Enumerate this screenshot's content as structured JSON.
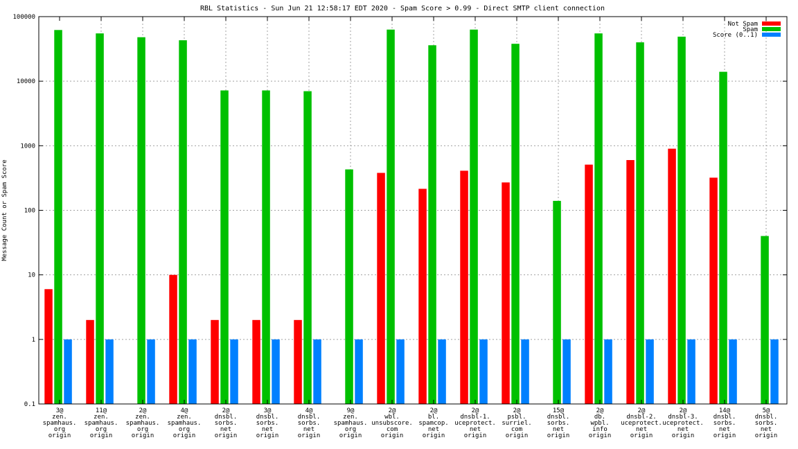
{
  "chart_data": {
    "type": "bar",
    "title": "RBL Statistics - Sun Jun 21 12:58:17 EDT 2020 - Spam Score > 0.99 - Direct SMTP client connection",
    "xlabel": "",
    "ylabel": "Message Count or Spam Score",
    "yscale": "log",
    "ylim": [
      0.1,
      100000
    ],
    "yticks": [
      "0.1",
      "1",
      "10",
      "100",
      "1000",
      "10000",
      "100000"
    ],
    "grid": true,
    "legend_position": "top-right",
    "categories": [
      [
        "3@",
        "zen.",
        "spamhaus.",
        "org",
        "origin"
      ],
      [
        "11@",
        "zen.",
        "spamhaus.",
        "org",
        "origin"
      ],
      [
        "2@",
        "zen.",
        "spamhaus.",
        "org",
        "origin"
      ],
      [
        "4@",
        "zen.",
        "spamhaus.",
        "org",
        "origin"
      ],
      [
        "2@",
        "dnsbl.",
        "sorbs.",
        "net",
        "origin"
      ],
      [
        "3@",
        "dnsbl.",
        "sorbs.",
        "net",
        "origin"
      ],
      [
        "4@",
        "dnsbl.",
        "sorbs.",
        "net",
        "origin"
      ],
      [
        "9@",
        "zen.",
        "spamhaus.",
        "org",
        "origin"
      ],
      [
        "2@",
        "wbl.",
        "unsubscore.",
        "com",
        "origin"
      ],
      [
        "2@",
        "bl.",
        "spamcop.",
        "net",
        "origin"
      ],
      [
        "2@",
        "dnsbl-1.",
        "uceprotect.",
        "net",
        "origin"
      ],
      [
        "2@",
        "psbl.",
        "surriel.",
        "com",
        "origin"
      ],
      [
        "15@",
        "dnsbl.",
        "sorbs.",
        "net",
        "origin"
      ],
      [
        "2@",
        "db.",
        "wpbl.",
        "info",
        "origin"
      ],
      [
        "2@",
        "dnsbl-2.",
        "uceprotect.",
        "net",
        "origin"
      ],
      [
        "2@",
        "dnsbl-3.",
        "uceprotect.",
        "net",
        "origin"
      ],
      [
        "14@",
        "dnsbl.",
        "sorbs.",
        "net",
        "origin"
      ],
      [
        "5@",
        "dnsbl.",
        "sorbs.",
        "net",
        "origin"
      ]
    ],
    "series": [
      {
        "name": "Not Spam",
        "color": "#ff0000",
        "values": [
          6,
          2,
          null,
          10,
          2,
          2,
          2,
          null,
          380,
          215,
          410,
          270,
          null,
          510,
          600,
          900,
          320,
          null
        ]
      },
      {
        "name": "Spam",
        "color": "#00c000",
        "values": [
          62000,
          55000,
          48000,
          43000,
          7200,
          7200,
          7000,
          430,
          63000,
          36000,
          63000,
          38000,
          140,
          55000,
          40000,
          49000,
          14000,
          40
        ]
      },
      {
        "name": "Score (0..1)",
        "color": "#0080ff",
        "values": [
          1,
          1,
          1,
          1,
          1,
          1,
          1,
          1,
          1,
          1,
          1,
          1,
          1,
          1,
          1,
          1,
          1,
          1
        ]
      }
    ]
  }
}
